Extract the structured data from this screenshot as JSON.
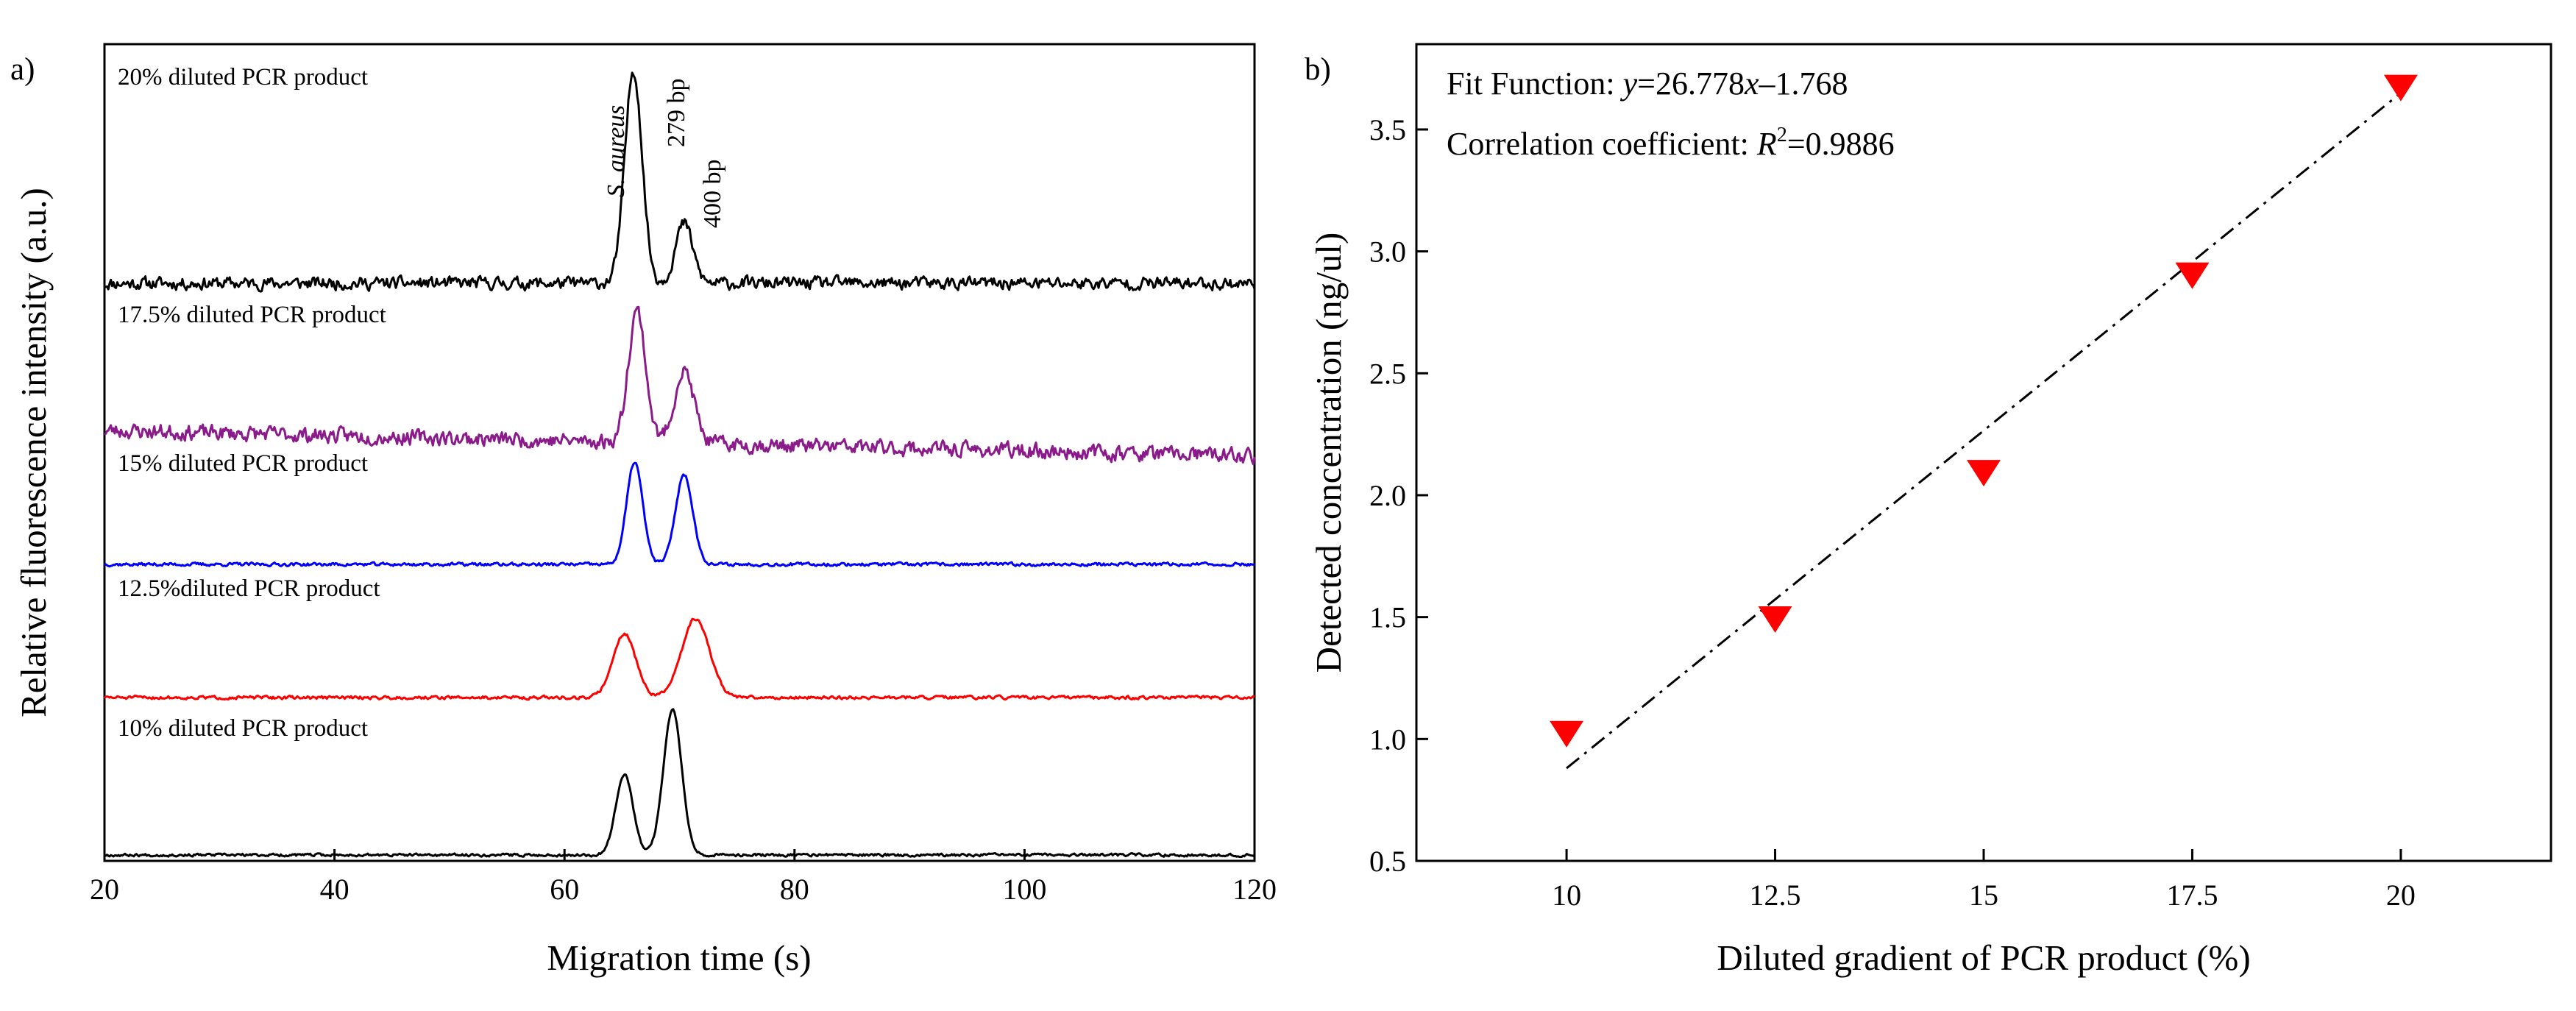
{
  "chart_data": [
    {
      "panel_label": "a)",
      "type": "line",
      "xlabel": "Migration time (s)",
      "ylabel": "Relative fluorescence intensity (a.u.)",
      "xlim": [
        20,
        120
      ],
      "xticks": [
        20,
        40,
        60,
        80,
        100,
        120
      ],
      "yticks": [],
      "peak_labels": {
        "species": "S. aureus",
        "peak1": "279 bp",
        "peak2": "400 bp"
      },
      "series": [
        {
          "name": "20% diluted PCR product",
          "color": "#000000",
          "baseline": 0.0,
          "noise": 0.045,
          "drift": 0.0,
          "seed": 11,
          "peaks": [
            {
              "x": 66.0,
              "height": 1.0,
              "width": 0.75
            },
            {
              "x": 70.4,
              "height": 0.28,
              "width": 0.75
            }
          ]
        },
        {
          "name": "17.5% diluted PCR product",
          "color": "#8b1a8b",
          "baseline": 0.0,
          "noise": 0.055,
          "drift": -0.12,
          "seed": 23,
          "peaks": [
            {
              "x": 66.3,
              "height": 0.62,
              "width": 0.75
            },
            {
              "x": 70.4,
              "height": 0.34,
              "width": 0.85
            }
          ]
        },
        {
          "name": "15% diluted PCR product",
          "color": "#0000ff",
          "baseline": 0.0,
          "noise": 0.012,
          "drift": 0.0,
          "seed": 37,
          "peaks": [
            {
              "x": 66.1,
              "height": 0.48,
              "width": 0.7
            },
            {
              "x": 70.4,
              "height": 0.42,
              "width": 0.75
            }
          ]
        },
        {
          "name": "12.5%diluted PCR product",
          "color": "#ff0000",
          "baseline": 0.0,
          "noise": 0.012,
          "drift": 0.0,
          "seed": 51,
          "peaks": [
            {
              "x": 65.2,
              "height": 0.3,
              "width": 1.0
            },
            {
              "x": 71.4,
              "height": 0.37,
              "width": 1.2
            }
          ]
        },
        {
          "name": "10% diluted PCR product",
          "color": "#000000",
          "baseline": 0.0,
          "noise": 0.01,
          "drift": 0.0,
          "seed": 67,
          "peaks": [
            {
              "x": 65.2,
              "height": 0.38,
              "width": 0.75
            },
            {
              "x": 69.4,
              "height": 0.68,
              "width": 0.8
            }
          ]
        }
      ]
    },
    {
      "panel_label": "b)",
      "type": "scatter",
      "xlabel": "Diluted gradient of PCR product (%)",
      "ylabel": "Detected concentration (ng/ul)",
      "xlim": [
        8.2,
        21.8
      ],
      "ylim": [
        0.5,
        3.85
      ],
      "xticks": [
        10,
        12.5,
        15,
        17.5,
        20
      ],
      "yticks": [
        0.5,
        1.0,
        1.5,
        2.0,
        2.5,
        3.0,
        3.5
      ],
      "x": [
        10,
        12.5,
        15,
        17.5,
        20
      ],
      "y": [
        1.02,
        1.49,
        2.09,
        2.9,
        3.67
      ],
      "marker_color": "#ff0000",
      "fit": {
        "x_range": [
          10,
          20
        ],
        "y_range": [
          0.88,
          3.65
        ],
        "style": "dash-dot"
      },
      "annotations": {
        "fit_prefix": "Fit Function: ",
        "fit_y": "y",
        "fit_mid": "=26.778",
        "fit_x": "x",
        "fit_tail": "–1.768",
        "corr_prefix": "Correlation coefficient: ",
        "corr_r": "R",
        "corr_sup": "2",
        "corr_value": "=0.9886"
      }
    }
  ]
}
